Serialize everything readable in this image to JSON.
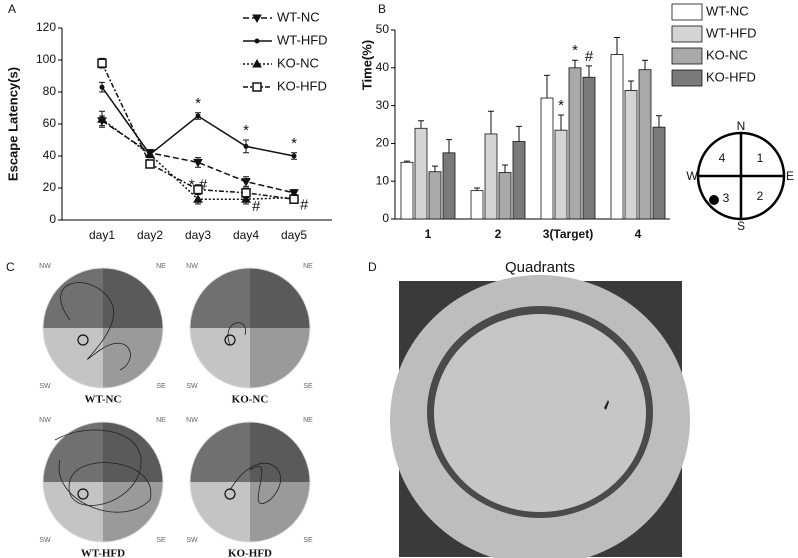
{
  "panel_labels": [
    "A",
    "B",
    "C",
    "D"
  ],
  "chart_data": [
    {
      "type": "line",
      "ylabel": "Escape Latency(s)",
      "categories": [
        "day1",
        "day2",
        "day3",
        "day4",
        "day5"
      ],
      "ylim": [
        0,
        120
      ],
      "yticks": [
        0,
        20,
        40,
        60,
        80,
        100,
        120
      ],
      "series": [
        {
          "name": "WT-NC",
          "color": "#111111",
          "dash": "6,3",
          "marker": "triangle-down",
          "values": [
            62,
            42,
            36,
            24,
            17
          ],
          "errors": [
            3,
            2,
            3,
            3,
            2
          ],
          "annotations": [
            null,
            null,
            null,
            null,
            null
          ]
        },
        {
          "name": "WT-HFD",
          "color": "#111111",
          "dash": "none",
          "marker": "dot",
          "values": [
            83,
            41,
            65,
            46,
            40
          ],
          "errors": [
            3,
            2,
            2,
            4,
            2
          ],
          "annotations": [
            null,
            null,
            "*",
            "*",
            "*"
          ]
        },
        {
          "name": "KO-NC",
          "color": "#111111",
          "dash": "2,2",
          "marker": "triangle",
          "values": [
            63,
            41,
            13,
            13,
            14
          ],
          "errors": [
            5,
            2,
            3,
            3,
            2
          ],
          "annotations": [
            null,
            null,
            "* #",
            "#",
            "#"
          ]
        },
        {
          "name": "KO-HFD",
          "color": "#111111",
          "dash": "5,2,2,2",
          "marker": "square-open",
          "values": [
            98,
            35,
            19,
            17,
            13
          ],
          "errors": [
            3,
            2,
            3,
            3,
            2
          ],
          "annotations": [
            null,
            null,
            null,
            null,
            null
          ]
        }
      ]
    },
    {
      "type": "bar",
      "ylabel": "Time(%)",
      "categories": [
        "1",
        "2",
        "3(Target)",
        "4"
      ],
      "ylim": [
        0,
        50
      ],
      "yticks": [
        0,
        10,
        20,
        30,
        40,
        50
      ],
      "series": [
        {
          "name": "WT-NC",
          "color": "#ffffff",
          "values": [
            15,
            7.5,
            32,
            43.5
          ],
          "errors": [
            0.3,
            0.7,
            6,
            4.5
          ],
          "annotations": [
            null,
            null,
            null,
            null
          ]
        },
        {
          "name": "WT-HFD",
          "color": "#d4d4d4",
          "values": [
            24,
            22.5,
            23.5,
            34
          ],
          "errors": [
            2,
            6,
            4,
            2.5
          ],
          "annotations": [
            null,
            null,
            "*",
            null
          ]
        },
        {
          "name": "KO-NC",
          "color": "#a9a9a9",
          "values": [
            12.5,
            12.3,
            40,
            39.5
          ],
          "errors": [
            1.5,
            2,
            2,
            2.5
          ],
          "annotations": [
            null,
            null,
            "*",
            null
          ]
        },
        {
          "name": "KO-HFD",
          "color": "#7a7a7a",
          "values": [
            17.5,
            20.5,
            37.5,
            24.3
          ],
          "errors": [
            3.5,
            4,
            3,
            3
          ],
          "annotations": [
            null,
            null,
            "#",
            null
          ]
        }
      ]
    }
  ],
  "quadrant_diagram": {
    "directions": [
      "N",
      "E",
      "S",
      "W"
    ],
    "quadrants": [
      "1",
      "2",
      "3",
      "4"
    ]
  },
  "track_panels": {
    "groups": [
      "WT-NC",
      "KO-NC",
      "WT-HFD",
      "KO-HFD"
    ],
    "corners": [
      "NW",
      "NE",
      "SW",
      "SE"
    ]
  },
  "photo": {
    "title": "Quadrants"
  }
}
